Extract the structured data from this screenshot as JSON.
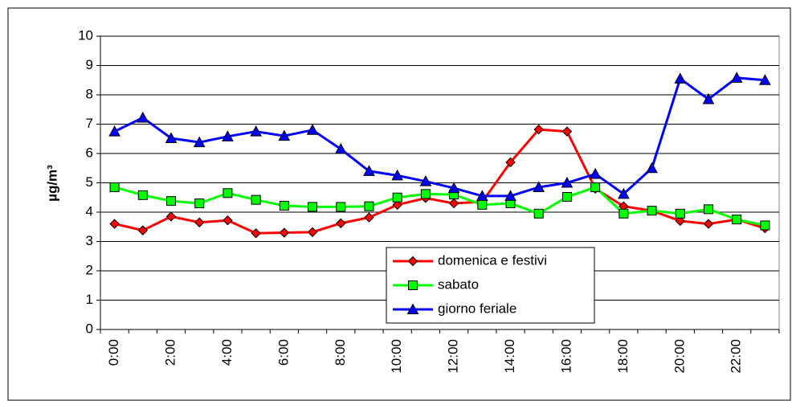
{
  "chart_data": {
    "type": "line",
    "ylabel": "µg/m³",
    "categories": [
      "0:00",
      null,
      "2:00",
      null,
      "4:00",
      null,
      "6:00",
      null,
      "8:00",
      null,
      "10:00",
      null,
      "12:00",
      null,
      "14:00",
      null,
      "16:00",
      null,
      "18:00",
      null,
      "20:00",
      null,
      "22:00",
      null
    ],
    "series": [
      {
        "name": "domenica e festivi",
        "color": "#ff0000",
        "marker": "diamond",
        "values": [
          3.6,
          3.38,
          3.85,
          3.65,
          3.72,
          3.28,
          3.3,
          3.32,
          3.62,
          3.82,
          4.25,
          4.48,
          4.3,
          4.35,
          5.7,
          6.82,
          6.75,
          4.8,
          4.2,
          4.05,
          3.7,
          3.6,
          3.75,
          3.45
        ]
      },
      {
        "name": "sabato",
        "color": "#00ff00",
        "marker": "square",
        "values": [
          4.85,
          4.58,
          4.38,
          4.3,
          4.65,
          4.42,
          4.22,
          4.18,
          4.18,
          4.2,
          4.5,
          4.62,
          4.6,
          4.25,
          4.3,
          3.95,
          4.52,
          4.85,
          3.95,
          4.05,
          3.95,
          4.1,
          3.75,
          3.55
        ]
      },
      {
        "name": "giorno feriale",
        "color": "#0000ff",
        "marker": "triangle",
        "values": [
          6.75,
          7.22,
          6.52,
          6.38,
          6.58,
          6.75,
          6.6,
          6.8,
          6.15,
          5.4,
          5.25,
          5.05,
          4.82,
          4.55,
          4.55,
          4.85,
          5.0,
          5.3,
          4.62,
          5.5,
          8.55,
          7.85,
          8.58,
          8.5
        ]
      }
    ],
    "ylim": [
      0,
      10
    ],
    "yticks": [
      0,
      1,
      2,
      3,
      4,
      5,
      6,
      7,
      8,
      9,
      10
    ],
    "grid": true
  }
}
